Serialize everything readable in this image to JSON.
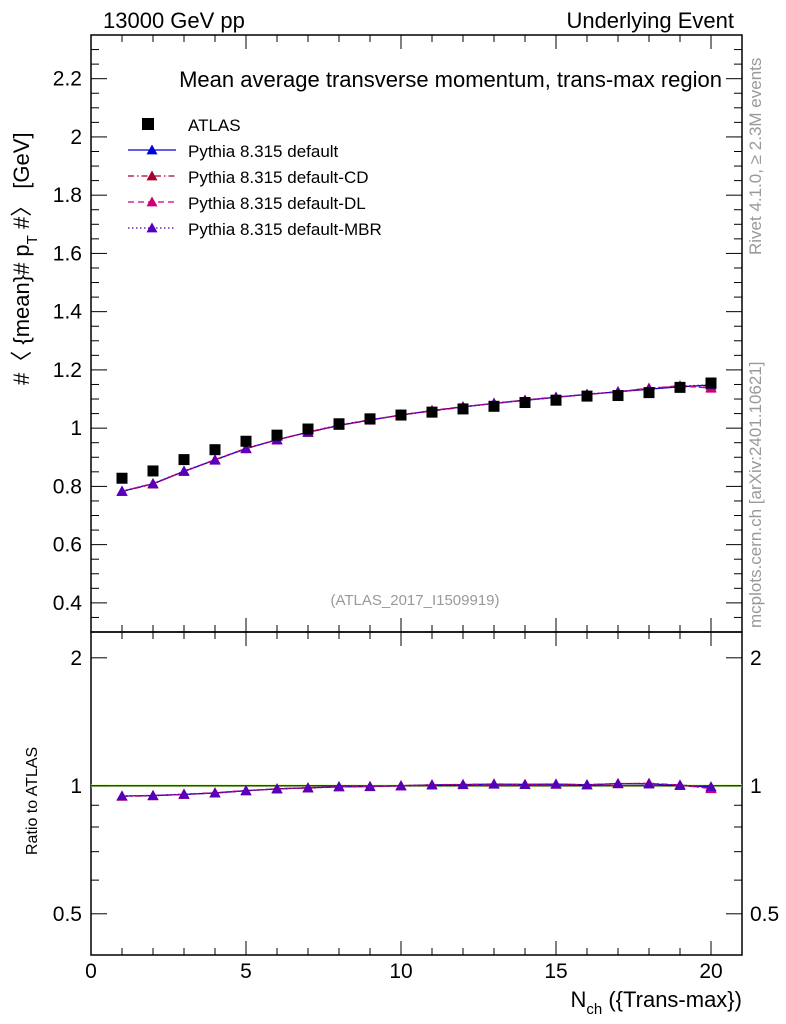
{
  "header": {
    "left": "13000 GeV pp",
    "right": "Underlying Event"
  },
  "side": {
    "rivet": "Rivet 4.1.0, ≥ 2.3M events",
    "mcplots": "mcplots.cern.ch [arXiv:2401.10621]"
  },
  "chart_data": {
    "type": "scatter",
    "title": "Mean average transverse momentum, trans-max region",
    "analysis_tag": "(ATLAS_2017_I1509919)",
    "xlabel_main": "N",
    "xlabel_sub": "ch",
    "xlabel_rest": " ({Trans-max})",
    "ylabel": "#〈 {mean}# p_T #〉 [GeV]",
    "ylabel_parts": {
      "a": "#〈 {mean}# p",
      "sub": "T",
      "b": " #〉 [GeV]"
    },
    "ratio_ylabel": "Ratio to ATLAS",
    "xlim": [
      0,
      21
    ],
    "ylim": [
      0.3,
      2.35
    ],
    "ratio_ylim": [
      0.4,
      2.3
    ],
    "x_ticks": [
      0,
      5,
      10,
      15,
      20
    ],
    "x_tick_labels": [
      "0",
      "5",
      "10",
      "15",
      "20"
    ],
    "y_ticks": [
      0.4,
      0.6,
      0.8,
      1,
      1.2,
      1.4,
      1.6,
      1.8,
      2,
      2.2
    ],
    "y_tick_labels": [
      "0.4",
      "0.6",
      "0.8",
      "1",
      "1.2",
      "1.4",
      "1.6",
      "1.8",
      "2",
      "2.2"
    ],
    "ratio_ticks": [
      0.5,
      1,
      2
    ],
    "ratio_tick_labels": [
      "0.5",
      "1",
      "2"
    ],
    "x": [
      1,
      2,
      3,
      4,
      5,
      6,
      7,
      8,
      9,
      10,
      11,
      12,
      13,
      14,
      15,
      16,
      17,
      18,
      19,
      20
    ],
    "data": {
      "name": "ATLAS",
      "color": "#000000",
      "values": [
        0.828,
        0.853,
        0.892,
        0.926,
        0.955,
        0.976,
        0.997,
        1.015,
        1.032,
        1.045,
        1.055,
        1.066,
        1.075,
        1.088,
        1.096,
        1.11,
        1.112,
        1.122,
        1.14,
        1.155
      ]
    },
    "series": [
      {
        "name": "Pythia 8.315 default",
        "color": "#0000dd",
        "dash": "",
        "values": [
          0.783,
          0.809,
          0.851,
          0.891,
          0.93,
          0.96,
          0.986,
          1.009,
          1.028,
          1.045,
          1.06,
          1.073,
          1.085,
          1.096,
          1.106,
          1.116,
          1.125,
          1.134,
          1.142,
          1.148
        ]
      },
      {
        "name": "Pythia 8.315 default-CD",
        "color": "#aa0033",
        "dash": "6 3 1.5 3",
        "values": [
          0.782,
          0.808,
          0.852,
          0.891,
          0.929,
          0.961,
          0.985,
          1.009,
          1.027,
          1.046,
          1.059,
          1.072,
          1.086,
          1.096,
          1.105,
          1.116,
          1.124,
          1.138,
          1.143,
          1.14
        ]
      },
      {
        "name": "Pythia 8.315 default-DL",
        "color": "#cc0077",
        "dash": "6 4",
        "values": [
          0.783,
          0.81,
          0.851,
          0.892,
          0.931,
          0.959,
          0.987,
          1.01,
          1.029,
          1.044,
          1.061,
          1.074,
          1.084,
          1.097,
          1.107,
          1.115,
          1.126,
          1.136,
          1.146,
          1.137
        ]
      },
      {
        "name": "Pythia 8.315 default-MBR",
        "color": "#5500bb",
        "dash": "1.5 2.5",
        "values": [
          0.784,
          0.809,
          0.853,
          0.89,
          0.93,
          0.96,
          0.986,
          1.011,
          1.028,
          1.045,
          1.06,
          1.073,
          1.085,
          1.095,
          1.106,
          1.117,
          1.125,
          1.133,
          1.144,
          1.149
        ]
      }
    ]
  }
}
